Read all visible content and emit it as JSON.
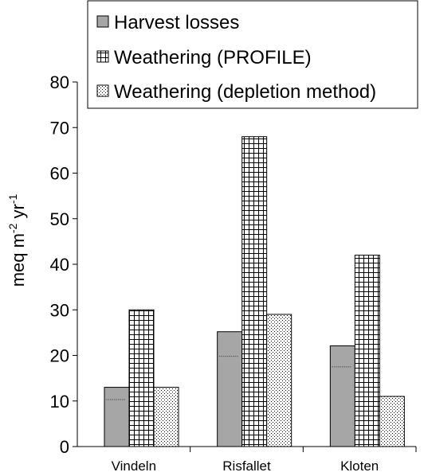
{
  "chart_data": {
    "type": "bar",
    "categories": [
      "Vindeln",
      "Risfallet",
      "Kloten"
    ],
    "series": [
      {
        "name": "Harvest losses",
        "values": [
          13,
          25.2,
          22.1
        ],
        "pattern": "solid",
        "color": "#a6a6a6"
      },
      {
        "name": "Weathering (PROFILE)",
        "values": [
          30,
          68,
          42
        ],
        "pattern": "grid",
        "color": "#ffffff"
      },
      {
        "name": "Weathering (depletion method)",
        "values": [
          13,
          29,
          11
        ],
        "pattern": "dots",
        "color": "#ffffff"
      }
    ],
    "harvest_inner_marks": [
      10.3,
      19.8,
      17.5
    ],
    "ylabel": {
      "base": "meq m",
      "sup1": "-2",
      "mid": " yr",
      "sup2": "-1"
    },
    "ylim": [
      0,
      80
    ],
    "yticks": [
      "0",
      "10",
      "20",
      "30",
      "40",
      "50",
      "60",
      "70",
      "80"
    ],
    "grid": false,
    "legend_position": "top-right"
  }
}
